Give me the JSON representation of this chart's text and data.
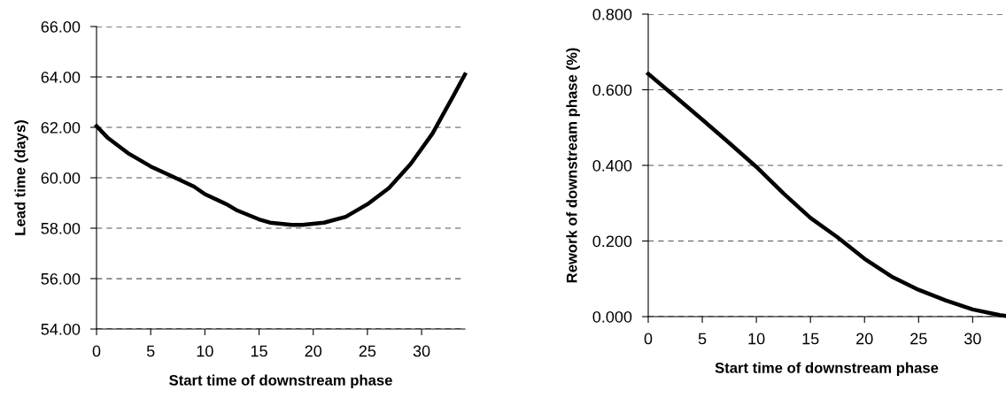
{
  "chart_data": [
    {
      "type": "line",
      "xlabel": "Start time of downstream phase",
      "ylabel": "Lead time (days)",
      "xlim": [
        0,
        34
      ],
      "xticks": [
        0,
        5,
        10,
        15,
        20,
        25,
        30
      ],
      "ylim": [
        54,
        66
      ],
      "yticks": [
        {
          "value": 54,
          "label": "54.00"
        },
        {
          "value": 56,
          "label": "56.00"
        },
        {
          "value": 58,
          "label": "58.00"
        },
        {
          "value": 60,
          "label": "60.00"
        },
        {
          "value": 62,
          "label": "62.00"
        },
        {
          "value": 64,
          "label": "64.00"
        },
        {
          "value": 66,
          "label": "66.00"
        }
      ],
      "grid": "y",
      "marker": "none",
      "line_style": "solid",
      "series": [
        {
          "color": "#000000",
          "x": [
            0,
            1,
            3,
            5,
            7,
            9,
            10,
            12,
            13,
            15,
            16,
            18,
            19,
            21,
            23,
            25,
            27,
            29,
            31,
            33,
            34
          ],
          "values": [
            62.05,
            61.6,
            60.95,
            60.45,
            60.05,
            59.65,
            59.35,
            58.95,
            58.7,
            58.35,
            58.22,
            58.13,
            58.13,
            58.22,
            58.45,
            58.95,
            59.6,
            60.55,
            61.75,
            63.3,
            64.1
          ]
        }
      ]
    },
    {
      "type": "line",
      "xlabel": "Start time of downstream phase",
      "ylabel": "Rework of downstream phase (%)",
      "xlim": [
        0,
        33
      ],
      "xticks": [
        0,
        5,
        10,
        15,
        20,
        25,
        30
      ],
      "ylim": [
        0,
        0.8
      ],
      "yticks": [
        {
          "value": 0,
          "label": "0.000"
        },
        {
          "value": 0.2,
          "label": "0.200"
        },
        {
          "value": 0.4,
          "label": "0.400"
        },
        {
          "value": 0.6,
          "label": "0.600"
        },
        {
          "value": 0.8,
          "label": "0.800"
        }
      ],
      "grid": "y",
      "marker": "none",
      "line_style": "solid",
      "series": [
        {
          "color": "#000000",
          "x": [
            0,
            2.5,
            5,
            7.5,
            10,
            12.5,
            15,
            17.5,
            20,
            22.5,
            25,
            27.5,
            30,
            32.5,
            33
          ],
          "values": [
            0.642,
            0.582,
            0.521,
            0.459,
            0.396,
            0.326,
            0.261,
            0.21,
            0.153,
            0.106,
            0.071,
            0.043,
            0.019,
            0.004,
            0.002
          ]
        }
      ]
    }
  ]
}
